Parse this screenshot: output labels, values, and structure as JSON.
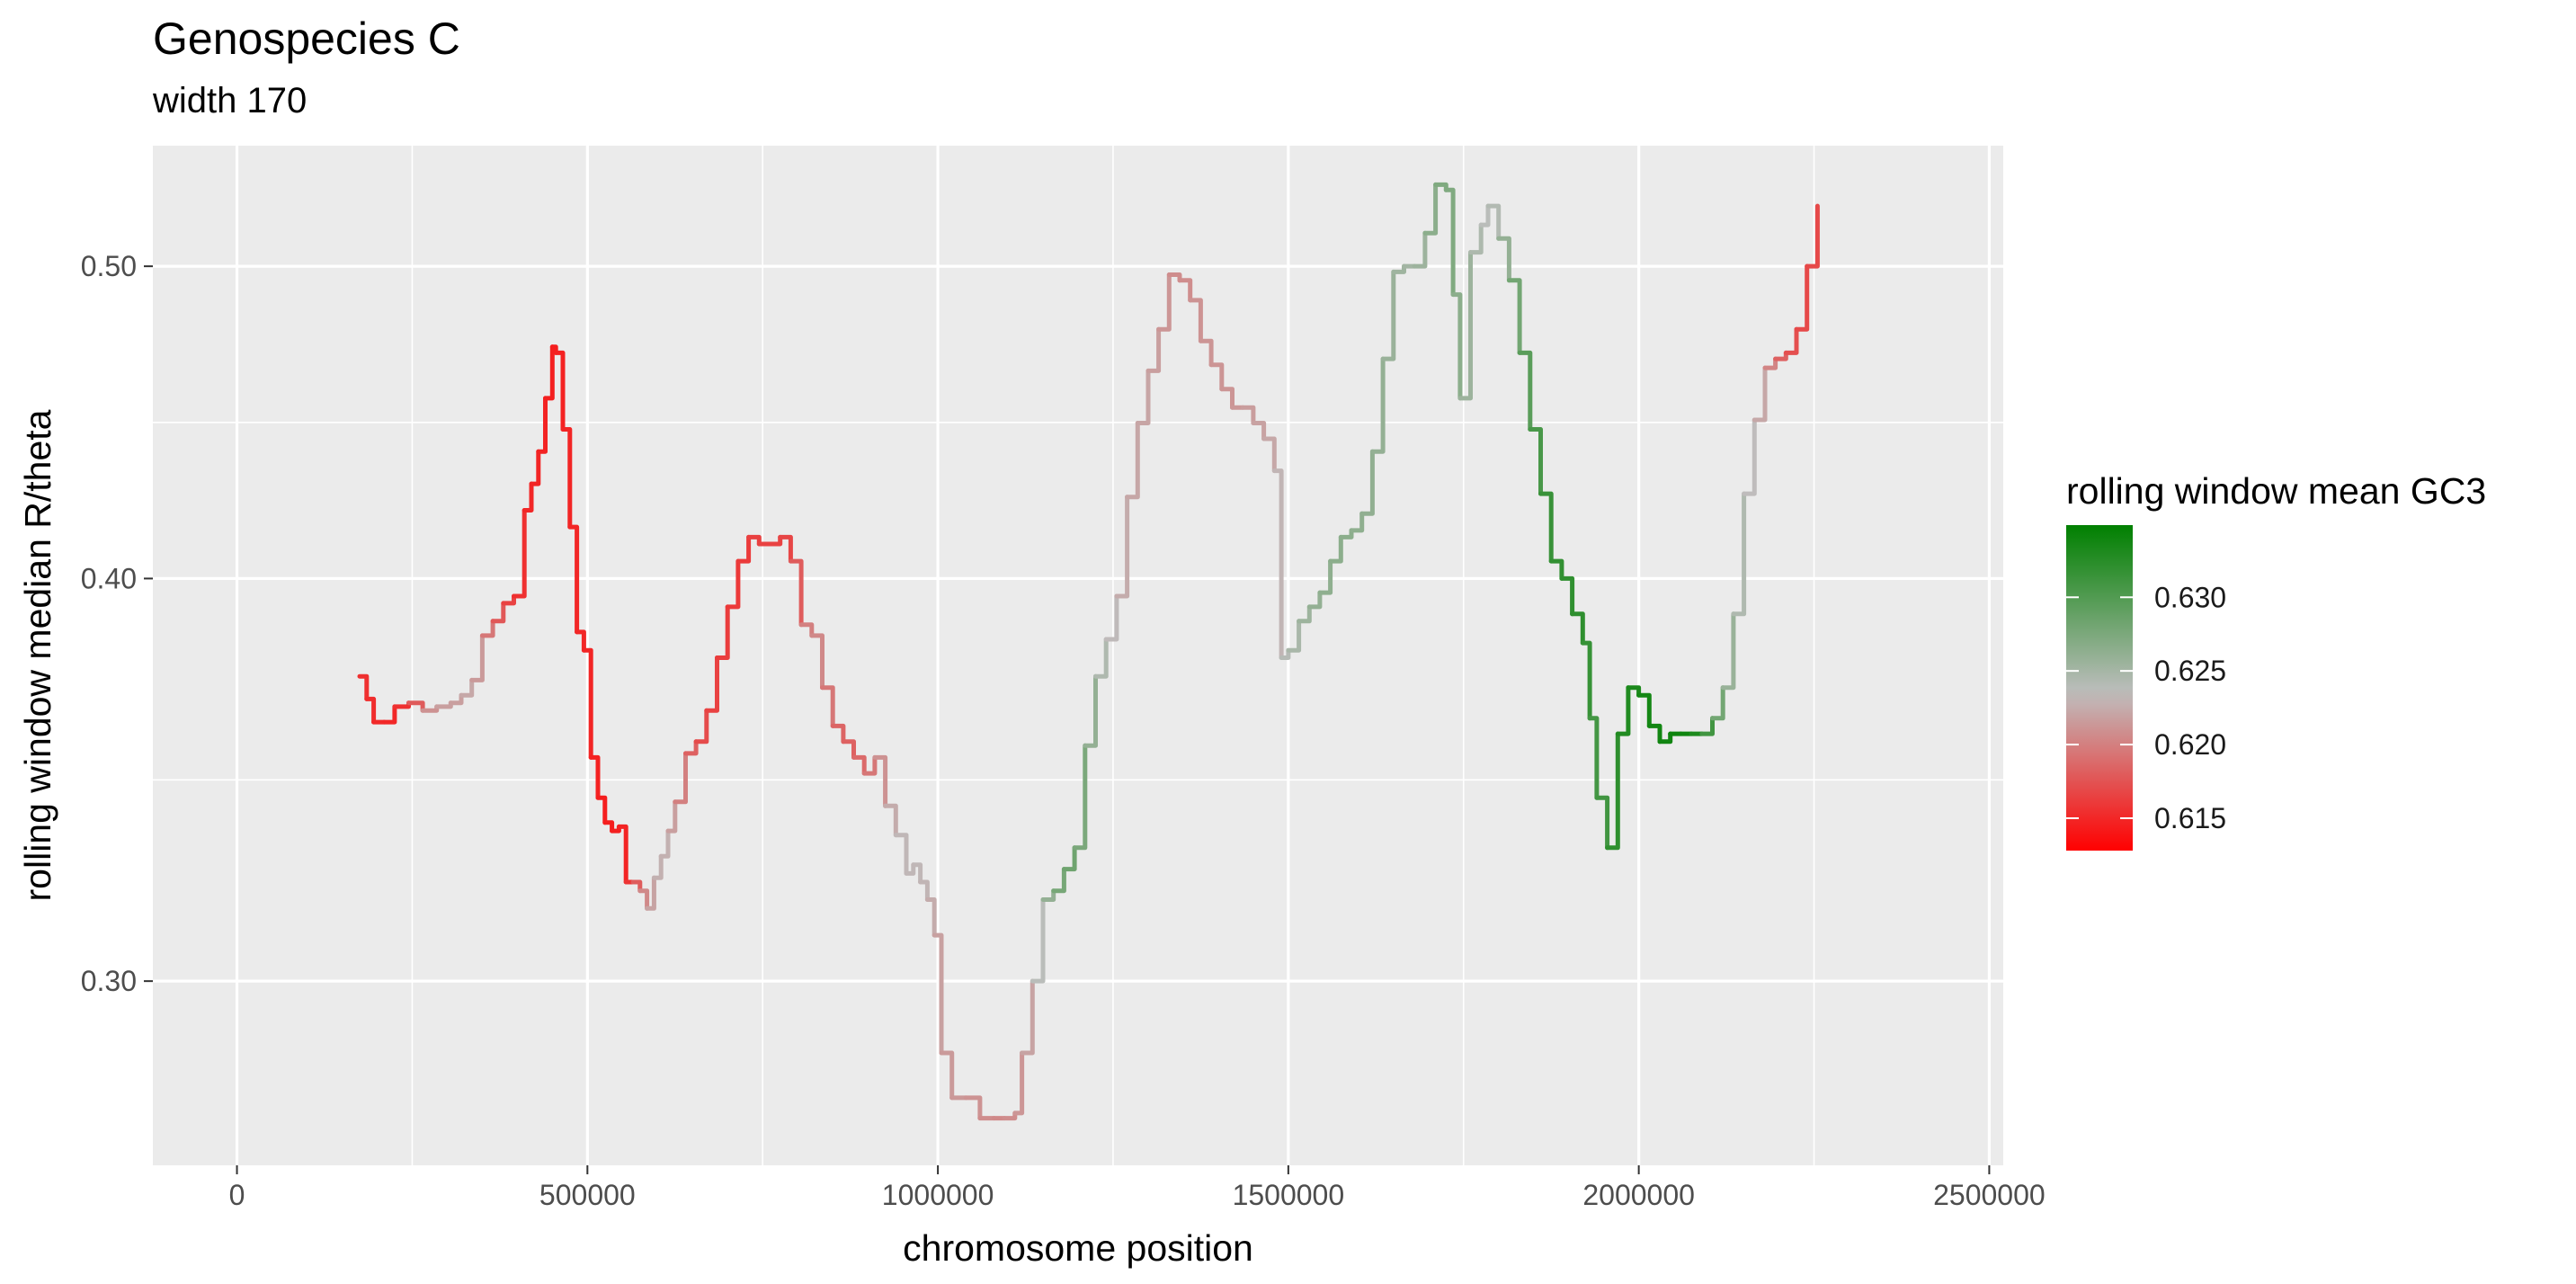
{
  "chart_data": {
    "type": "line",
    "title": "Genospecies C",
    "subtitle": "width 170",
    "xlabel": "chromosome position",
    "ylabel": "rolling window median R/theta",
    "xlim": [
      -120000,
      2520000
    ],
    "ylim": [
      0.263,
      0.545
    ],
    "y_log_scale": true,
    "grid": true,
    "background": "#EBEBEB",
    "x_ticks": [
      {
        "value": 0,
        "label": "0"
      },
      {
        "value": 500000,
        "label": "500000"
      },
      {
        "value": 1000000,
        "label": "1000000"
      },
      {
        "value": 1500000,
        "label": "1500000"
      },
      {
        "value": 2000000,
        "label": "2000000"
      },
      {
        "value": 2500000,
        "label": "2500000"
      }
    ],
    "y_ticks": [
      {
        "value": 0.3,
        "label": "0.30"
      },
      {
        "value": 0.4,
        "label": "0.40"
      },
      {
        "value": 0.5,
        "label": "0.50"
      }
    ],
    "legend": {
      "title": "rolling window mean GC3",
      "placement": "right",
      "range": [
        0.6128,
        0.6349
      ],
      "breaks": [
        {
          "value": 0.615,
          "label": "0.615"
        },
        {
          "value": 0.62,
          "label": "0.620"
        },
        {
          "value": 0.625,
          "label": "0.625"
        },
        {
          "value": 0.63,
          "label": "0.630"
        }
      ],
      "colors": {
        "low": "#FF0000",
        "mid": "#BEBEBE",
        "high": "#008000"
      },
      "mid_value": 0.6235
    },
    "series": [
      {
        "x": [
          175000,
          185000,
          195000,
          210000,
          225000,
          245000,
          265000,
          285000,
          305000,
          320000,
          335000,
          350000,
          365000,
          380000,
          395000,
          410000,
          420000,
          430000,
          440000,
          450000,
          455000,
          465000,
          475000,
          485000,
          495000,
          505000,
          515000,
          525000,
          535000,
          545000,
          555000,
          565000,
          575000,
          585000,
          595000,
          605000,
          615000,
          625000,
          640000,
          655000,
          670000,
          685000,
          700000,
          715000,
          730000,
          745000,
          760000,
          775000,
          790000,
          805000,
          820000,
          835000,
          850000,
          865000,
          880000,
          895000,
          910000,
          925000,
          940000,
          955000,
          965000,
          975000,
          985000,
          995000,
          1005000,
          1020000,
          1040000,
          1060000,
          1080000,
          1095000,
          1110000,
          1120000,
          1135000,
          1150000,
          1165000,
          1180000,
          1195000,
          1210000,
          1225000,
          1240000,
          1255000,
          1270000,
          1285000,
          1300000,
          1315000,
          1330000,
          1345000,
          1360000,
          1375000,
          1390000,
          1405000,
          1420000,
          1435000,
          1450000,
          1465000,
          1480000,
          1490000,
          1500000,
          1515000,
          1530000,
          1545000,
          1560000,
          1575000,
          1590000,
          1605000,
          1620000,
          1635000,
          1650000,
          1665000,
          1680000,
          1695000,
          1710000,
          1725000,
          1735000,
          1745000,
          1760000,
          1775000,
          1785000,
          1800000,
          1815000,
          1830000,
          1845000,
          1860000,
          1875000,
          1890000,
          1905000,
          1920000,
          1930000,
          1940000,
          1955000,
          1970000,
          1985000,
          2000000,
          2015000,
          2030000,
          2045000,
          2060000,
          2075000,
          2090000,
          2105000,
          2120000,
          2135000,
          2150000,
          2165000,
          2180000,
          2195000,
          2210000,
          2225000,
          2240000,
          2255000,
          2265000
        ],
        "y": [
          0.373,
          0.367,
          0.361,
          0.361,
          0.365,
          0.366,
          0.364,
          0.365,
          0.366,
          0.368,
          0.372,
          0.384,
          0.388,
          0.393,
          0.395,
          0.42,
          0.428,
          0.438,
          0.455,
          0.472,
          0.47,
          0.445,
          0.415,
          0.385,
          0.38,
          0.352,
          0.342,
          0.336,
          0.334,
          0.335,
          0.322,
          0.322,
          0.32,
          0.316,
          0.323,
          0.328,
          0.334,
          0.341,
          0.353,
          0.356,
          0.364,
          0.378,
          0.392,
          0.405,
          0.412,
          0.41,
          0.41,
          0.412,
          0.405,
          0.387,
          0.384,
          0.37,
          0.36,
          0.356,
          0.352,
          0.348,
          0.352,
          0.34,
          0.333,
          0.324,
          0.326,
          0.322,
          0.318,
          0.31,
          0.285,
          0.276,
          0.276,
          0.272,
          0.272,
          0.272,
          0.273,
          0.285,
          0.3,
          0.318,
          0.32,
          0.325,
          0.33,
          0.355,
          0.373,
          0.383,
          0.395,
          0.424,
          0.447,
          0.464,
          0.478,
          0.497,
          0.495,
          0.488,
          0.474,
          0.466,
          0.458,
          0.452,
          0.452,
          0.447,
          0.442,
          0.432,
          0.378,
          0.38,
          0.388,
          0.392,
          0.396,
          0.405,
          0.412,
          0.414,
          0.419,
          0.438,
          0.468,
          0.498,
          0.5,
          0.5,
          0.512,
          0.53,
          0.528,
          0.49,
          0.455,
          0.505,
          0.515,
          0.522,
          0.51,
          0.495,
          0.47,
          0.445,
          0.425,
          0.405,
          0.4,
          0.39,
          0.382,
          0.362,
          0.342,
          0.33,
          0.358,
          0.37,
          0.368,
          0.36,
          0.356,
          0.358,
          0.358,
          0.358,
          0.358,
          0.362,
          0.37,
          0.39,
          0.425,
          0.448,
          0.465,
          0.468,
          0.47,
          0.478,
          0.5,
          0.522,
          0.523
        ],
        "color_values": [
          0.6155,
          0.6155,
          0.6152,
          0.615,
          0.615,
          0.616,
          0.62,
          0.622,
          0.6215,
          0.622,
          0.6225,
          0.6205,
          0.6185,
          0.617,
          0.616,
          0.615,
          0.615,
          0.6148,
          0.6147,
          0.6145,
          0.6145,
          0.6148,
          0.615,
          0.615,
          0.615,
          0.6148,
          0.6145,
          0.6145,
          0.6145,
          0.6147,
          0.615,
          0.6165,
          0.6195,
          0.6215,
          0.6225,
          0.623,
          0.6225,
          0.621,
          0.619,
          0.6175,
          0.6165,
          0.6165,
          0.616,
          0.616,
          0.6163,
          0.6165,
          0.6165,
          0.6165,
          0.617,
          0.619,
          0.621,
          0.62,
          0.619,
          0.618,
          0.6185,
          0.619,
          0.62,
          0.622,
          0.623,
          0.6232,
          0.623,
          0.6232,
          0.6228,
          0.6222,
          0.6215,
          0.6215,
          0.6212,
          0.621,
          0.6205,
          0.6205,
          0.621,
          0.6215,
          0.6225,
          0.625,
          0.627,
          0.6285,
          0.628,
          0.627,
          0.625,
          0.6238,
          0.6228,
          0.6222,
          0.6222,
          0.622,
          0.6215,
          0.621,
          0.6205,
          0.621,
          0.6212,
          0.6212,
          0.6212,
          0.6212,
          0.6215,
          0.6218,
          0.622,
          0.6225,
          0.6235,
          0.6245,
          0.625,
          0.6258,
          0.6262,
          0.6265,
          0.6265,
          0.6265,
          0.6262,
          0.6262,
          0.6258,
          0.6255,
          0.6252,
          0.625,
          0.626,
          0.627,
          0.6275,
          0.627,
          0.626,
          0.625,
          0.624,
          0.6235,
          0.625,
          0.627,
          0.629,
          0.63,
          0.631,
          0.632,
          0.6318,
          0.6322,
          0.632,
          0.6312,
          0.6305,
          0.6315,
          0.6328,
          0.633,
          0.6335,
          0.6338,
          0.6338,
          0.634,
          0.6342,
          0.6338,
          0.6325,
          0.6295,
          0.6265,
          0.625,
          0.6238,
          0.623,
          0.6215,
          0.619,
          0.6175,
          0.617,
          0.6168,
          0.617
        ]
      }
    ]
  }
}
